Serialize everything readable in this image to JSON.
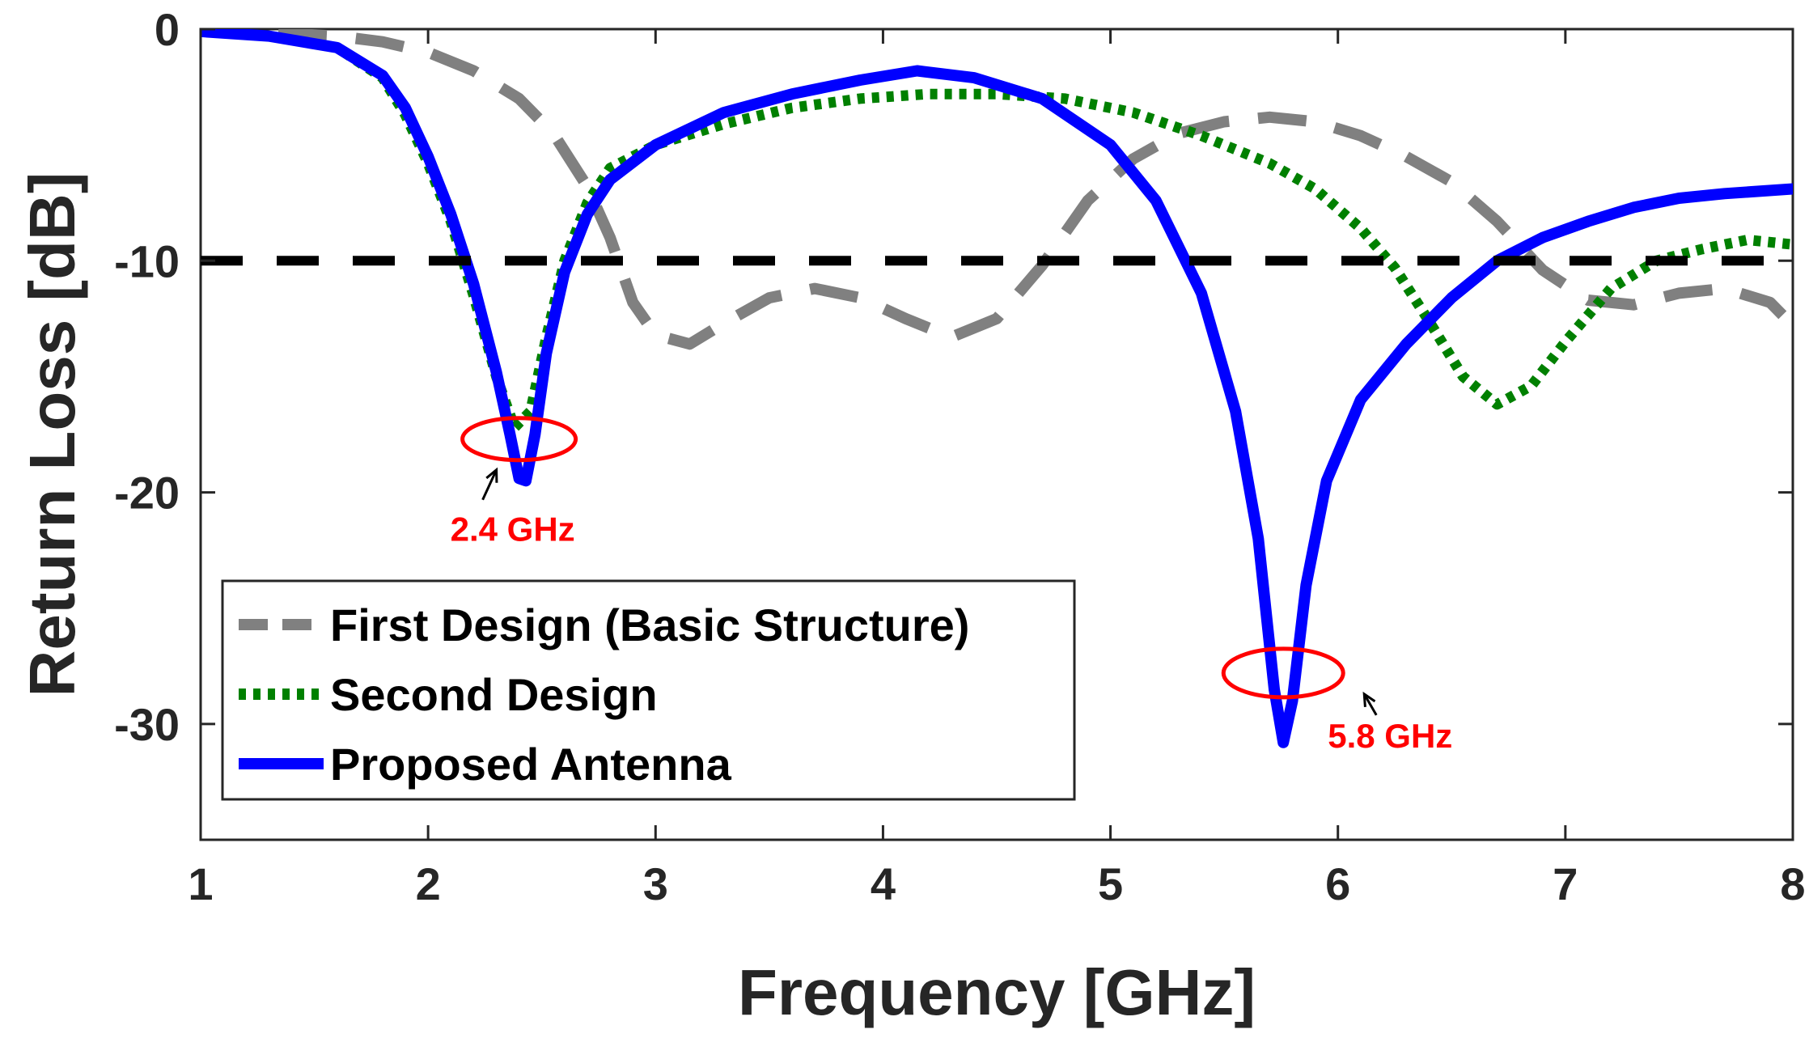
{
  "chart_data": {
    "type": "line",
    "xlabel": "Frequency [GHz]",
    "ylabel": "Return Loss [dB]",
    "xlim": [
      1,
      8
    ],
    "ylim": [
      -35,
      0
    ],
    "xticks": [
      "1",
      "2",
      "3",
      "4",
      "5",
      "6",
      "7",
      "8"
    ],
    "yticks": [
      "0",
      "-10",
      "-20",
      "-30"
    ],
    "xtick_values": [
      1,
      2,
      3,
      4,
      5,
      6,
      7,
      8
    ],
    "ytick_values": [
      0,
      -10,
      -20,
      -30
    ],
    "grid": false,
    "legend_position": "bottom-left",
    "threshold": {
      "y": -10,
      "color": "#000000",
      "style": "dashed"
    },
    "series": [
      {
        "name": "First Design (Basic Structure)",
        "color": "#808080",
        "style": "dashed",
        "points": [
          [
            1.0,
            -0.1
          ],
          [
            1.3,
            -0.15
          ],
          [
            1.6,
            -0.3
          ],
          [
            1.8,
            -0.55
          ],
          [
            2.0,
            -1.0
          ],
          [
            2.2,
            -1.8
          ],
          [
            2.4,
            -3.0
          ],
          [
            2.55,
            -4.5
          ],
          [
            2.7,
            -6.8
          ],
          [
            2.8,
            -9.0
          ],
          [
            2.9,
            -11.8
          ],
          [
            3.0,
            -13.2
          ],
          [
            3.15,
            -13.6
          ],
          [
            3.3,
            -12.7
          ],
          [
            3.5,
            -11.6
          ],
          [
            3.7,
            -11.2
          ],
          [
            3.9,
            -11.6
          ],
          [
            4.1,
            -12.5
          ],
          [
            4.3,
            -13.3
          ],
          [
            4.5,
            -12.5
          ],
          [
            4.7,
            -10.2
          ],
          [
            4.9,
            -7.4
          ],
          [
            5.1,
            -5.6
          ],
          [
            5.3,
            -4.5
          ],
          [
            5.5,
            -4.0
          ],
          [
            5.7,
            -3.8
          ],
          [
            5.9,
            -4.0
          ],
          [
            6.1,
            -4.6
          ],
          [
            6.3,
            -5.5
          ],
          [
            6.5,
            -6.6
          ],
          [
            6.7,
            -8.3
          ],
          [
            6.9,
            -10.4
          ],
          [
            7.1,
            -11.7
          ],
          [
            7.3,
            -11.9
          ],
          [
            7.5,
            -11.4
          ],
          [
            7.7,
            -11.2
          ],
          [
            7.9,
            -11.8
          ],
          [
            8.0,
            -12.8
          ]
        ]
      },
      {
        "name": "Second Design",
        "color": "#008000",
        "style": "dotted",
        "points": [
          [
            1.0,
            -0.1
          ],
          [
            1.3,
            -0.3
          ],
          [
            1.6,
            -0.8
          ],
          [
            1.8,
            -2.1
          ],
          [
            1.9,
            -3.7
          ],
          [
            2.0,
            -5.8
          ],
          [
            2.1,
            -8.3
          ],
          [
            2.2,
            -11.5
          ],
          [
            2.3,
            -15.0
          ],
          [
            2.38,
            -17.2
          ],
          [
            2.45,
            -16.5
          ],
          [
            2.52,
            -13.3
          ],
          [
            2.6,
            -10.0
          ],
          [
            2.7,
            -7.5
          ],
          [
            2.8,
            -6.0
          ],
          [
            3.0,
            -5.0
          ],
          [
            3.3,
            -4.1
          ],
          [
            3.6,
            -3.4
          ],
          [
            3.9,
            -3.0
          ],
          [
            4.2,
            -2.8
          ],
          [
            4.5,
            -2.8
          ],
          [
            4.8,
            -3.0
          ],
          [
            5.1,
            -3.6
          ],
          [
            5.4,
            -4.6
          ],
          [
            5.7,
            -5.8
          ],
          [
            5.9,
            -6.9
          ],
          [
            6.1,
            -8.6
          ],
          [
            6.25,
            -10.3
          ],
          [
            6.4,
            -12.6
          ],
          [
            6.55,
            -15.0
          ],
          [
            6.7,
            -16.2
          ],
          [
            6.85,
            -15.4
          ],
          [
            7.0,
            -13.5
          ],
          [
            7.2,
            -11.2
          ],
          [
            7.4,
            -10.0
          ],
          [
            7.6,
            -9.5
          ],
          [
            7.8,
            -9.1
          ],
          [
            8.0,
            -9.3
          ]
        ]
      },
      {
        "name": "Proposed Antenna",
        "color": "#0000FF",
        "style": "solid",
        "points": [
          [
            1.0,
            -0.1
          ],
          [
            1.3,
            -0.3
          ],
          [
            1.6,
            -0.8
          ],
          [
            1.8,
            -2.0
          ],
          [
            1.9,
            -3.4
          ],
          [
            2.0,
            -5.5
          ],
          [
            2.1,
            -8.0
          ],
          [
            2.2,
            -11.0
          ],
          [
            2.3,
            -14.8
          ],
          [
            2.36,
            -17.5
          ],
          [
            2.4,
            -19.4
          ],
          [
            2.43,
            -19.5
          ],
          [
            2.47,
            -17.5
          ],
          [
            2.52,
            -14.0
          ],
          [
            2.6,
            -10.5
          ],
          [
            2.7,
            -8.0
          ],
          [
            2.8,
            -6.5
          ],
          [
            3.0,
            -5.0
          ],
          [
            3.3,
            -3.6
          ],
          [
            3.6,
            -2.8
          ],
          [
            3.9,
            -2.2
          ],
          [
            4.15,
            -1.8
          ],
          [
            4.4,
            -2.1
          ],
          [
            4.7,
            -3.0
          ],
          [
            5.0,
            -5.0
          ],
          [
            5.2,
            -7.4
          ],
          [
            5.4,
            -11.4
          ],
          [
            5.55,
            -16.5
          ],
          [
            5.65,
            -22.0
          ],
          [
            5.72,
            -28.5
          ],
          [
            5.76,
            -30.8
          ],
          [
            5.8,
            -29.0
          ],
          [
            5.86,
            -24.0
          ],
          [
            5.95,
            -19.5
          ],
          [
            6.1,
            -16.0
          ],
          [
            6.3,
            -13.6
          ],
          [
            6.5,
            -11.6
          ],
          [
            6.7,
            -10.0
          ],
          [
            6.9,
            -9.0
          ],
          [
            7.1,
            -8.3
          ],
          [
            7.3,
            -7.7
          ],
          [
            7.5,
            -7.3
          ],
          [
            7.7,
            -7.1
          ],
          [
            8.0,
            -6.9
          ]
        ]
      }
    ],
    "annotations": [
      {
        "text": "2.4 GHz",
        "x": 2.4,
        "y": -17.7,
        "color": "#FF0000"
      },
      {
        "text": "5.8 GHz",
        "x": 5.76,
        "y": -27.8,
        "color": "#FF0000"
      }
    ]
  }
}
